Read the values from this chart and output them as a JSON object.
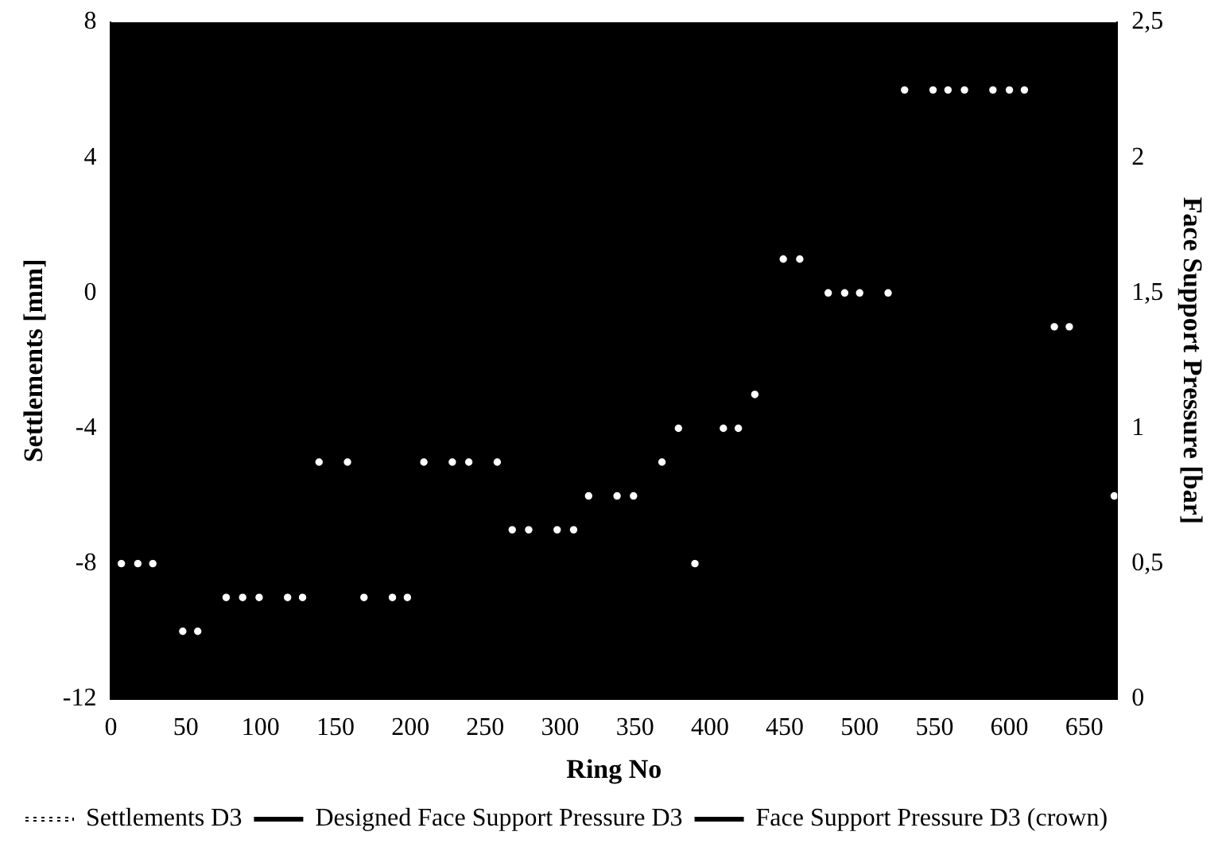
{
  "chart_data": {
    "type": "scatter",
    "xlabel": "Ring No",
    "ylabel": "Settlements [mm]",
    "y2label": "Face Support Pressure [bar]",
    "x": [
      7,
      18,
      28,
      48,
      58,
      77,
      88,
      99,
      118,
      128,
      139,
      158,
      169,
      188,
      198,
      209,
      228,
      239,
      258,
      268,
      279,
      298,
      309,
      319,
      338,
      349,
      368,
      379,
      390,
      409,
      419,
      430,
      449,
      460,
      479,
      490,
      500,
      519,
      530,
      549,
      559,
      570,
      589,
      600,
      610,
      630,
      640,
      670
    ],
    "series": [
      {
        "name": "Settlements D3",
        "color": "#ffffff",
        "marker": "circle",
        "line_style": "dotted",
        "values": [
          -8,
          -8,
          -8,
          -10,
          -10,
          -9,
          -9,
          -9,
          -9,
          -9,
          -5,
          -5,
          -9,
          -9,
          -9,
          -5,
          -5,
          -5,
          -5,
          -7,
          -7,
          -7,
          -7,
          -6,
          -6,
          -6,
          -5,
          -4,
          -8,
          -4,
          -4,
          -3,
          1,
          1,
          0,
          0,
          0,
          0,
          6,
          6,
          6,
          6,
          6,
          6,
          6,
          -1,
          -1,
          -6
        ]
      },
      {
        "name": "Designed Face Support Pressure D3",
        "type": "line",
        "color": "#000000",
        "marker": "cross",
        "line_style": "solid",
        "values": [
          null,
          null,
          null,
          null,
          null,
          null,
          null,
          null,
          null,
          null,
          null,
          null,
          null,
          null,
          null,
          null,
          null,
          null,
          null,
          null,
          null,
          null,
          null,
          null,
          null,
          null,
          null,
          null,
          null,
          null,
          null,
          null,
          null,
          null,
          null,
          null,
          null,
          null,
          null,
          null,
          null,
          null,
          null,
          null,
          null,
          null,
          null,
          null
        ]
      },
      {
        "name": "Face Support Pressure D3 (crown)",
        "type": "line",
        "color": "#000000",
        "marker": "square",
        "line_style": "solid",
        "values": [
          null,
          null,
          null,
          null,
          null,
          null,
          null,
          null,
          null,
          null,
          null,
          null,
          null,
          null,
          null,
          null,
          null,
          null,
          null,
          null,
          null,
          null,
          null,
          null,
          null,
          null,
          null,
          null,
          null,
          null,
          null,
          null,
          null,
          null,
          null,
          null,
          null,
          null,
          null,
          null,
          null,
          null,
          null,
          null,
          null,
          null,
          null,
          null
        ]
      }
    ],
    "xlim": [
      0,
      672
    ],
    "xticks": [
      0,
      50,
      100,
      150,
      200,
      250,
      300,
      350,
      400,
      450,
      500,
      550,
      600,
      650
    ],
    "ylim": [
      -12,
      8
    ],
    "yticks": [
      -12,
      -8,
      -4,
      0,
      4,
      8
    ],
    "y2lim": [
      0,
      2.5
    ],
    "y2ticks": [
      0,
      {
        "value": 0.5,
        "label": "0,5"
      },
      1,
      {
        "value": 1.5,
        "label": "1,5"
      },
      2,
      {
        "value": 2.5,
        "label": "2,5"
      }
    ],
    "grid": false,
    "legend": "bottom"
  }
}
